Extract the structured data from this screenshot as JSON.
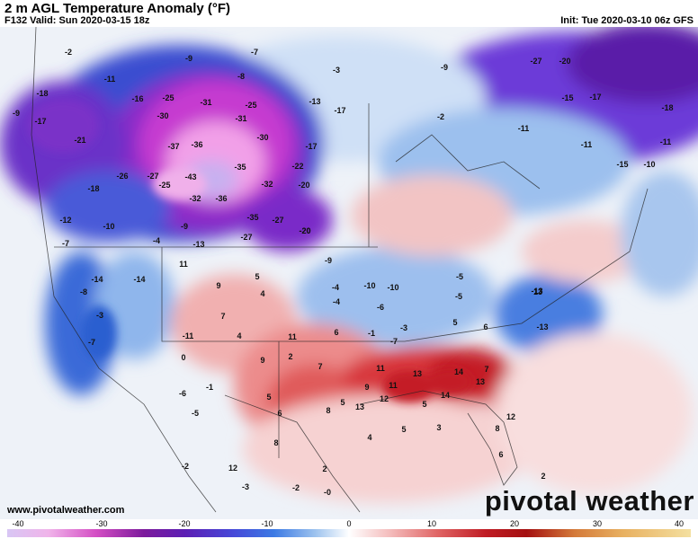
{
  "header": {
    "title": "2 m AGL Temperature Anomaly (°F)",
    "valid": "F132 Valid: Sun 2020-03-15 18z",
    "init": "Init: Tue 2020-03-10 06z GFS"
  },
  "footer": {
    "website": "www.pivotalweather.com",
    "brand": "pivotal weather"
  },
  "colorbar": {
    "ticks": [
      "-40",
      "-30",
      "-20",
      "-10",
      "0",
      "10",
      "20",
      "30",
      "40"
    ]
  },
  "map": {
    "labels": [
      "-2",
      "-11",
      "-9",
      "-7",
      "-8",
      "-3",
      "-9",
      "-27",
      "-20",
      "-18",
      "-16",
      "-25",
      "-31",
      "-25",
      "-13",
      "-17",
      "-15",
      "-17",
      "-18",
      "-17",
      "-30",
      "-31",
      "-2",
      "-9",
      "-11",
      "-26",
      "-21",
      "-37",
      "-36",
      "-30",
      "-17",
      "-11",
      "-27",
      "-35",
      "-43",
      "-32",
      "-22",
      "-20",
      "-15",
      "-10",
      "-11",
      "-18",
      "-25",
      "-36",
      "-32",
      "-35",
      "-27",
      "-20",
      "-12",
      "-10",
      "-4",
      "-9",
      "-13",
      "-27",
      "-20",
      "-7",
      "-14",
      "-14",
      "11",
      "5",
      "-9",
      "-4",
      "-10",
      "-10",
      "-5",
      "-13",
      "13",
      "-8",
      "-3",
      "9",
      "4",
      "-6",
      "-4",
      "-3",
      "-5",
      "-7",
      "-11",
      "7",
      "4",
      "11",
      "6",
      "-1",
      "-7",
      "6",
      "5",
      "-13",
      "0",
      "-1",
      "9",
      "2",
      "7",
      "11",
      "14",
      "13",
      "7",
      "-6",
      "5",
      "9",
      "12",
      "11",
      "13",
      "14",
      "-5",
      "6",
      "5",
      "8",
      "5",
      "13",
      "12",
      "8",
      "4",
      "5",
      "3",
      "8",
      "-2",
      "12",
      "6",
      "2",
      "-3",
      "-2",
      "-0",
      "2"
    ],
    "colors": {
      "deep_purple": "#5a1ea8",
      "magenta": "#c63ad0",
      "pink": "#f2a0e8",
      "lavender": "#c8b0f0",
      "blue": "#2c6fe0",
      "light_blue": "#bcd6f2",
      "white": "#f4f4f6",
      "light_red": "#f4c4c4",
      "red": "#e45a5a",
      "dark_red": "#c41e28"
    }
  }
}
